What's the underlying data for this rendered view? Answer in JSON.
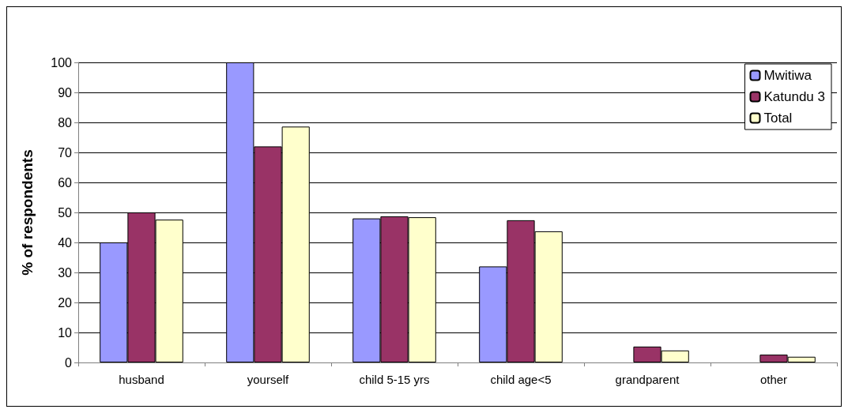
{
  "chart_data": {
    "type": "bar",
    "ylabel": "% of respondents",
    "categories": [
      "husband",
      "yourself",
      "child 5-15 yrs",
      "child age<5",
      "grandparent",
      "other"
    ],
    "series": [
      {
        "name": "Mwitiwa",
        "color": "#9999ff",
        "values": [
          40,
          100,
          48,
          32,
          0,
          0
        ]
      },
      {
        "name": "Katundu 3",
        "color": "#993366",
        "values": [
          50,
          72,
          48.7,
          47.4,
          5.3,
          2.6
        ]
      },
      {
        "name": "Total",
        "color": "#ffffcc",
        "values": [
          47.6,
          78.6,
          48.4,
          43.7,
          4,
          1.9
        ]
      }
    ],
    "ylim": [
      0,
      100
    ],
    "yticks": [
      0,
      10,
      20,
      30,
      40,
      50,
      60,
      70,
      80,
      90,
      100
    ],
    "grid": "y",
    "legend": "top right"
  }
}
